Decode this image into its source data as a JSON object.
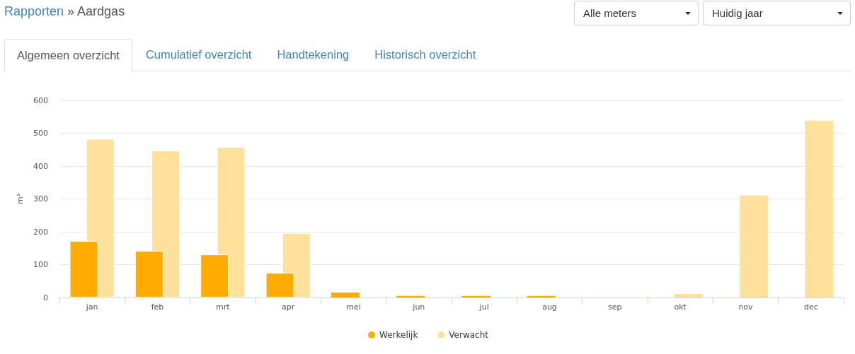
{
  "chart_data": {
    "type": "bar",
    "title": "Rapporten » Aardgas",
    "annotations": [
      "Alle meters",
      "Huidig jaar",
      "Algemeen overzicht",
      "Cumulatief overzicht",
      "Handtekening",
      "Historisch overzicht"
    ],
    "ylabel": "m³",
    "categories": [
      "jan",
      "feb",
      "mrt",
      "apr",
      "mei",
      "jun",
      "jul",
      "aug",
      "sep",
      "okt",
      "nov",
      "dec"
    ],
    "series": [
      {
        "name": "Werkelijk",
        "color": "#ffab00",
        "values": [
          172,
          142,
          131,
          75,
          15,
          5,
          5,
          5,
          null,
          null,
          null,
          null
        ]
      },
      {
        "name": "Verwacht",
        "color": "#ffe19c",
        "values": [
          483,
          447,
          458,
          196,
          null,
          null,
          null,
          null,
          null,
          11,
          310,
          538
        ]
      }
    ],
    "ylim": [
      0,
      600
    ],
    "yticks": [
      0,
      100,
      200,
      300,
      400,
      500,
      600
    ],
    "grid": "y",
    "legend": "bottom"
  }
}
